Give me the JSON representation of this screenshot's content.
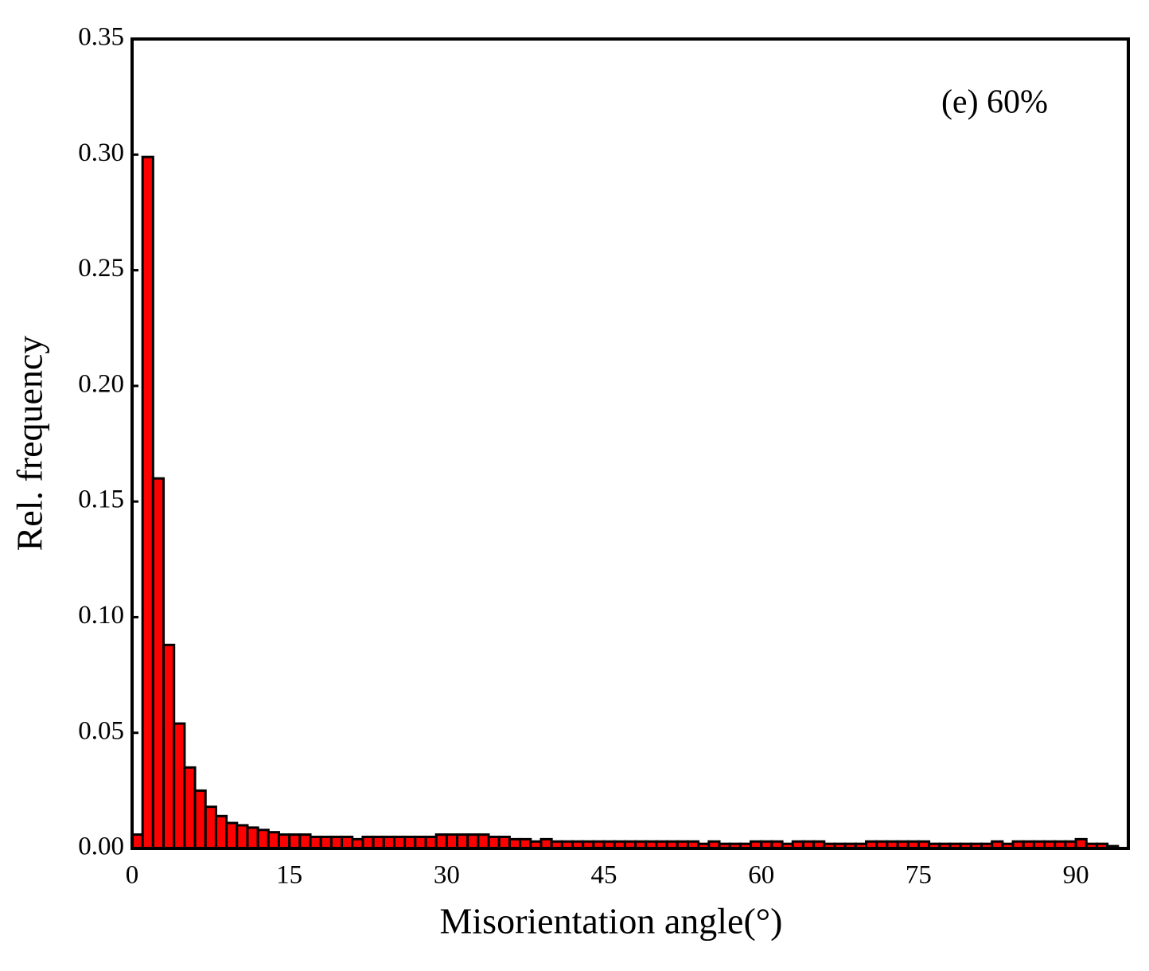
{
  "chart_data": {
    "type": "histogram",
    "annotation": "(e) 60%",
    "xlabel": "Misorientation angle(°)",
    "ylabel": "Rel. frequency",
    "color": "#ff0000",
    "bins": [
      0,
      1,
      2,
      3,
      4,
      5,
      6,
      7,
      8,
      9,
      10,
      11,
      12,
      13,
      14,
      15,
      16,
      17,
      18,
      19,
      20,
      21,
      22,
      23,
      24,
      25,
      26,
      27,
      28,
      29,
      30,
      31,
      32,
      33,
      34,
      35,
      36,
      37,
      38,
      39,
      40,
      41,
      42,
      43,
      44,
      45,
      46,
      47,
      48,
      49,
      50,
      51,
      52,
      53,
      54,
      55,
      56,
      57,
      58,
      59,
      60,
      61,
      62,
      63,
      64,
      65,
      66,
      67,
      68,
      69,
      70,
      71,
      72,
      73,
      74,
      75,
      76,
      77,
      78,
      79,
      80,
      81,
      82,
      83,
      84,
      85,
      86,
      87,
      88,
      89,
      90,
      91,
      92,
      93,
      94
    ],
    "values": [
      0.006,
      0.299,
      0.16,
      0.088,
      0.054,
      0.035,
      0.025,
      0.018,
      0.014,
      0.011,
      0.01,
      0.009,
      0.008,
      0.007,
      0.006,
      0.006,
      0.006,
      0.005,
      0.005,
      0.005,
      0.005,
      0.004,
      0.005,
      0.005,
      0.005,
      0.005,
      0.005,
      0.005,
      0.005,
      0.006,
      0.006,
      0.006,
      0.006,
      0.006,
      0.005,
      0.005,
      0.004,
      0.004,
      0.003,
      0.004,
      0.003,
      0.003,
      0.003,
      0.003,
      0.003,
      0.003,
      0.003,
      0.003,
      0.003,
      0.003,
      0.003,
      0.003,
      0.003,
      0.003,
      0.002,
      0.003,
      0.002,
      0.002,
      0.002,
      0.003,
      0.003,
      0.003,
      0.002,
      0.003,
      0.003,
      0.003,
      0.002,
      0.002,
      0.002,
      0.002,
      0.003,
      0.003,
      0.003,
      0.003,
      0.003,
      0.003,
      0.002,
      0.002,
      0.002,
      0.002,
      0.002,
      0.002,
      0.003,
      0.002,
      0.003,
      0.003,
      0.003,
      0.003,
      0.003,
      0.003,
      0.004,
      0.002,
      0.002,
      0.001
    ],
    "xlim": [
      0,
      95
    ],
    "ylim": [
      0,
      0.35
    ],
    "xticks": [
      0,
      15,
      30,
      45,
      60,
      75,
      90
    ],
    "yticks": [
      {
        "value": 0,
        "label": "0.00"
      },
      {
        "value": 0.05,
        "label": "0.05"
      },
      {
        "value": 0.1,
        "label": "0.10"
      },
      {
        "value": 0.15,
        "label": "0.15"
      },
      {
        "value": 0.2,
        "label": "0.20"
      },
      {
        "value": 0.25,
        "label": "0.25"
      },
      {
        "value": 0.3,
        "label": "0.30"
      },
      {
        "value": 0.35,
        "label": "0.35"
      }
    ],
    "grid": false
  }
}
